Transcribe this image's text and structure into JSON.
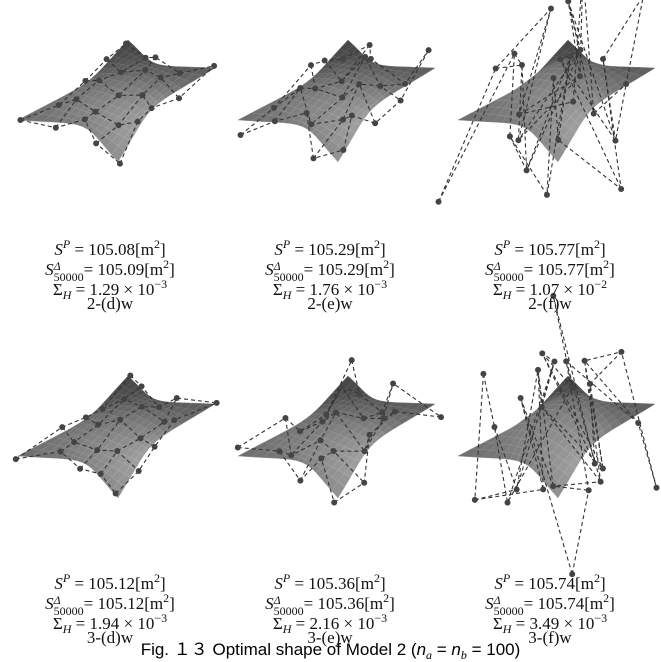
{
  "panels": [
    {
      "lines": [
        [
          {
            "it": "S"
          },
          {
            "sup": "P"
          },
          {
            "t": " = 105.08[m"
          },
          {
            "sup": "2"
          },
          {
            "t": "]"
          }
        ],
        [
          {
            "it": "S"
          },
          {
            "sup": "Δ",
            "sub": "50000"
          },
          {
            "t": "= 105.09[m"
          },
          {
            "sup": "2"
          },
          {
            "t": "]"
          }
        ],
        [
          {
            "t": "Σ"
          },
          {
            "sub": "H"
          },
          {
            "t": " = 1.29 × 10"
          },
          {
            "sup": "−3"
          }
        ],
        [
          {
            "t": "2-(d)w"
          }
        ]
      ]
    },
    {
      "lines": [
        [
          {
            "it": "S"
          },
          {
            "sup": "P"
          },
          {
            "t": " = 105.29[m"
          },
          {
            "sup": "2"
          },
          {
            "t": "]"
          }
        ],
        [
          {
            "it": "S"
          },
          {
            "sup": "Δ",
            "sub": "50000"
          },
          {
            "t": "= 105.29[m"
          },
          {
            "sup": "2"
          },
          {
            "t": "]"
          }
        ],
        [
          {
            "t": "Σ"
          },
          {
            "sub": "H"
          },
          {
            "t": " = 1.76 × 10"
          },
          {
            "sup": "−3"
          }
        ],
        [
          {
            "t": "2-(e)w"
          }
        ]
      ]
    },
    {
      "lines": [
        [
          {
            "it": "S"
          },
          {
            "sup": "P"
          },
          {
            "t": " = 105.77[m"
          },
          {
            "sup": "2"
          },
          {
            "t": "]"
          }
        ],
        [
          {
            "it": "S"
          },
          {
            "sup": "Δ",
            "sub": "50000"
          },
          {
            "t": "= 105.77[m"
          },
          {
            "sup": "2"
          },
          {
            "t": "]"
          }
        ],
        [
          {
            "t": "Σ"
          },
          {
            "sub": "H"
          },
          {
            "t": " = 1.07 × 10"
          },
          {
            "sup": "−2"
          }
        ],
        [
          {
            "t": "2-(f)w"
          }
        ]
      ]
    },
    {
      "lines": [
        [
          {
            "it": "S"
          },
          {
            "sup": "P"
          },
          {
            "t": " = 105.12[m"
          },
          {
            "sup": "2"
          },
          {
            "t": "]"
          }
        ],
        [
          {
            "it": "S"
          },
          {
            "sup": "Δ",
            "sub": "50000"
          },
          {
            "t": "= 105.12[m"
          },
          {
            "sup": "2"
          },
          {
            "t": "]"
          }
        ],
        [
          {
            "t": "Σ"
          },
          {
            "sub": "H"
          },
          {
            "t": " = 1.94 × 10"
          },
          {
            "sup": "−3"
          }
        ],
        [
          {
            "t": "3-(d)w"
          }
        ]
      ]
    },
    {
      "lines": [
        [
          {
            "it": "S"
          },
          {
            "sup": "P"
          },
          {
            "t": " = 105.36[m"
          },
          {
            "sup": "2"
          },
          {
            "t": "]"
          }
        ],
        [
          {
            "it": "S"
          },
          {
            "sup": "Δ",
            "sub": "50000"
          },
          {
            "t": "= 105.36[m"
          },
          {
            "sup": "2"
          },
          {
            "t": "]"
          }
        ],
        [
          {
            "t": "Σ"
          },
          {
            "sub": "H"
          },
          {
            "t": " = 2.16 × 10"
          },
          {
            "sup": "−3"
          }
        ],
        [
          {
            "t": "3-(e)w"
          }
        ]
      ]
    },
    {
      "lines": [
        [
          {
            "it": "S"
          },
          {
            "sup": "P"
          },
          {
            "t": " = 105.74[m"
          },
          {
            "sup": "2"
          },
          {
            "t": "]"
          }
        ],
        [
          {
            "it": "S"
          },
          {
            "sup": "Δ",
            "sub": "50000"
          },
          {
            "t": "= 105.74[m"
          },
          {
            "sup": "2"
          },
          {
            "t": "]"
          }
        ],
        [
          {
            "t": "Σ"
          },
          {
            "sub": "H"
          },
          {
            "t": " = 3.49 × 10"
          },
          {
            "sup": "−3"
          }
        ],
        [
          {
            "t": "3-(f)w"
          }
        ]
      ]
    }
  ],
  "caption": [
    {
      "t": "Fig. １３ Optimal shape of Model 2 ("
    },
    {
      "it": "n"
    },
    {
      "sub": "a"
    },
    {
      "t": " = "
    },
    {
      "it": "n"
    },
    {
      "sub": "b"
    },
    {
      "t": " = 100)"
    }
  ]
}
